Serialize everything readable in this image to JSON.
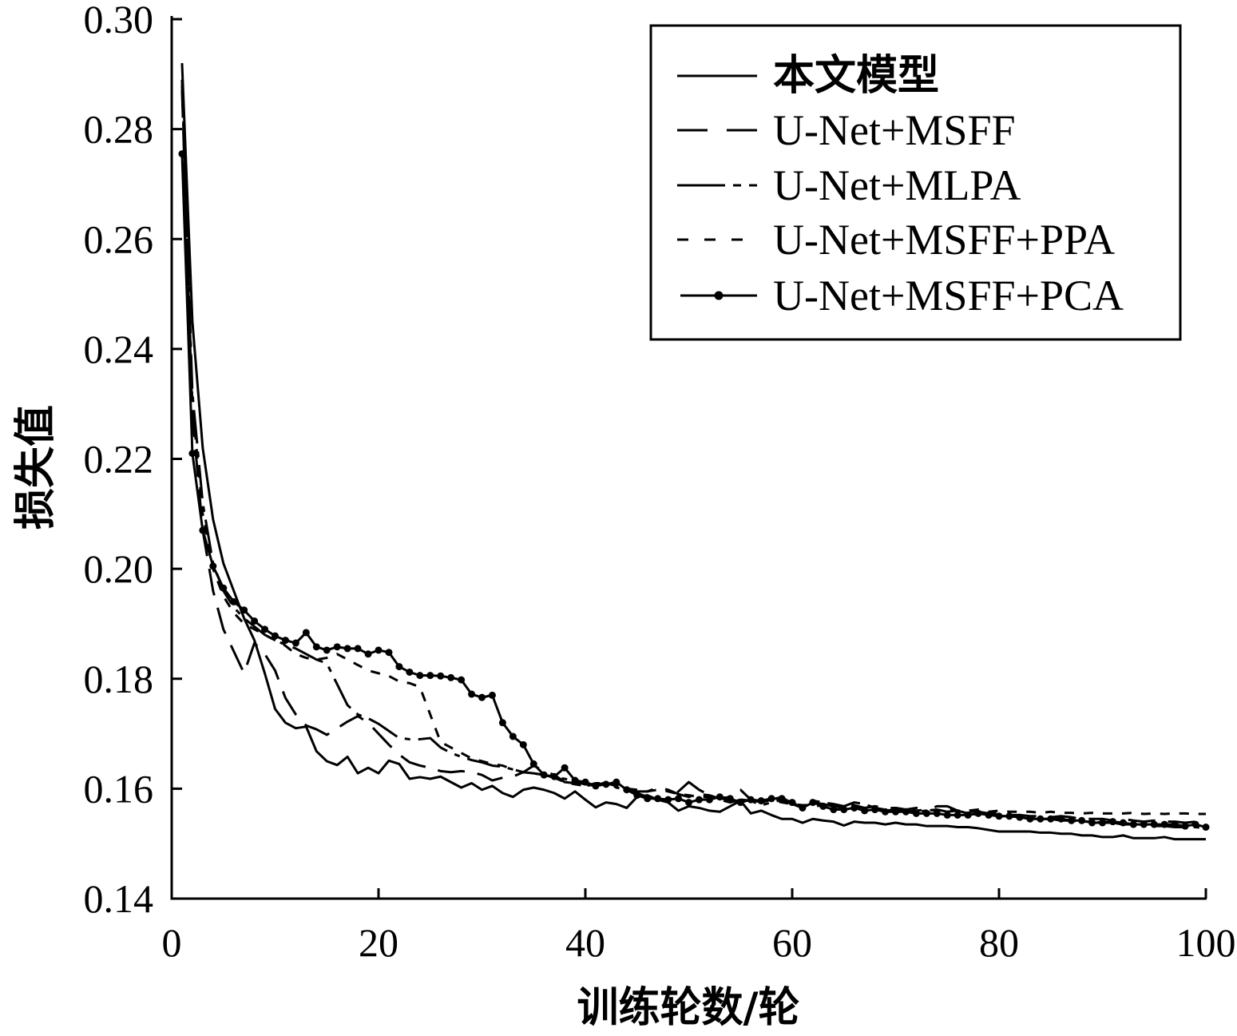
{
  "chart_data": {
    "type": "line",
    "xlabel": "训练轮数/轮",
    "ylabel": "损失值",
    "xlim": [
      0,
      100
    ],
    "ylim": [
      0.14,
      0.3
    ],
    "xticks": [
      "0",
      "20",
      "40",
      "60",
      "80",
      "100"
    ],
    "yticks": [
      "0.14",
      "0.16",
      "0.18",
      "0.20",
      "0.22",
      "0.24",
      "0.26",
      "0.28",
      "0.30"
    ],
    "grid": false,
    "legend_position": "top-right",
    "x": [
      1,
      2,
      3,
      4,
      5,
      6,
      7,
      8,
      9,
      10,
      11,
      12,
      13,
      14,
      15,
      16,
      17,
      18,
      19,
      20,
      21,
      22,
      23,
      24,
      25,
      26,
      27,
      28,
      29,
      30,
      31,
      32,
      33,
      34,
      35,
      36,
      37,
      38,
      39,
      40,
      41,
      42,
      43,
      44,
      45,
      46,
      47,
      48,
      49,
      50,
      51,
      52,
      53,
      54,
      55,
      56,
      57,
      58,
      59,
      60,
      61,
      62,
      63,
      64,
      65,
      66,
      67,
      68,
      69,
      70,
      71,
      72,
      73,
      74,
      75,
      76,
      77,
      78,
      79,
      80,
      81,
      82,
      83,
      84,
      85,
      86,
      87,
      88,
      89,
      90,
      91,
      92,
      93,
      94,
      95,
      96,
      97,
      98,
      99,
      100
    ],
    "series": [
      {
        "name": "本文模型",
        "color": "#000000",
        "values": [
          0.292,
          0.245,
          0.222,
          0.209,
          0.201,
          0.196,
          0.191,
          0.187,
          0.181,
          0.1745,
          0.172,
          0.171,
          0.1713,
          0.1668,
          0.165,
          0.1643,
          0.1658,
          0.1628,
          0.1638,
          0.1628,
          0.1651,
          0.1645,
          0.1618,
          0.1621,
          0.1618,
          0.1622,
          0.1612,
          0.1602,
          0.161,
          0.1598,
          0.1605,
          0.1592,
          0.1585,
          0.1598,
          0.1602,
          0.1598,
          0.1592,
          0.1582,
          0.1595,
          0.158,
          0.1566,
          0.1575,
          0.1572,
          0.1565,
          0.1585,
          0.1588,
          0.158,
          0.1575,
          0.156,
          0.1568,
          0.1565,
          0.156,
          0.1558,
          0.1568,
          0.1578,
          0.1555,
          0.156,
          0.1552,
          0.1545,
          0.1545,
          0.1538,
          0.1545,
          0.1542,
          0.154,
          0.1533,
          0.154,
          0.1538,
          0.1538,
          0.1535,
          0.1538,
          0.1535,
          0.1535,
          0.1532,
          0.1532,
          0.1532,
          0.153,
          0.153,
          0.1528,
          0.1525,
          0.1522,
          0.1522,
          0.1522,
          0.1522,
          0.152,
          0.152,
          0.1518,
          0.1518,
          0.1515,
          0.1515,
          0.1512,
          0.1512,
          0.1515,
          0.151,
          0.151,
          0.151,
          0.1512,
          0.1508,
          0.1508,
          0.1508,
          0.1508
        ]
      },
      {
        "name": "U-Net+MSFF",
        "color": "#000000",
        "values": [
          0.287,
          0.228,
          0.207,
          0.196,
          0.189,
          0.185,
          0.181,
          0.1865,
          0.1845,
          0.1815,
          0.1765,
          0.1735,
          0.1715,
          0.1708,
          0.1698,
          0.171,
          0.1722,
          0.1732,
          0.172,
          0.17,
          0.168,
          0.1662,
          0.1648,
          0.1642,
          0.1638,
          0.1632,
          0.163,
          0.1632,
          0.163,
          0.1625,
          0.1615,
          0.162,
          0.1622,
          0.163,
          0.1642,
          0.1632,
          0.1625,
          0.1612,
          0.161,
          0.1605,
          0.1608,
          0.161,
          0.1605,
          0.1598,
          0.1595,
          0.1595,
          0.1602,
          0.1598,
          0.159,
          0.1585,
          0.159,
          0.1588,
          0.1582,
          0.1585,
          0.1598,
          0.158,
          0.1575,
          0.158,
          0.1585,
          0.1572,
          0.1568,
          0.1575,
          0.1572,
          0.1568,
          0.1572,
          0.157,
          0.1565,
          0.1568,
          0.1565,
          0.1565,
          0.1562,
          0.1565,
          0.156,
          0.1562,
          0.1558,
          0.156,
          0.1558,
          0.1558,
          0.1555,
          0.1555,
          0.1552,
          0.1552,
          0.155,
          0.155,
          0.1548,
          0.155,
          0.1548,
          0.1545,
          0.1545,
          0.1545,
          0.1542,
          0.1545,
          0.1542,
          0.154,
          0.1542,
          0.154,
          0.154,
          0.1538,
          0.154,
          0.1538
        ]
      },
      {
        "name": "U-Net+MLPA",
        "color": "#000000",
        "values": [
          0.289,
          0.232,
          0.212,
          0.201,
          0.196,
          0.193,
          0.191,
          0.1895,
          0.188,
          0.187,
          0.1862,
          0.1855,
          0.1845,
          0.1835,
          0.1828,
          0.179,
          0.1752,
          0.1735,
          0.1728,
          0.1718,
          0.1705,
          0.1692,
          0.169,
          0.169,
          0.1692,
          0.1675,
          0.1665,
          0.1658,
          0.1652,
          0.1648,
          0.1642,
          0.164,
          0.1635,
          0.163,
          0.1628,
          0.1625,
          0.162,
          0.1618,
          0.1612,
          0.1608,
          0.1605,
          0.1612,
          0.1602,
          0.1598,
          0.1592,
          0.1585,
          0.158,
          0.1578,
          0.1595,
          0.1612,
          0.1598,
          0.1588,
          0.158,
          0.1575,
          0.158,
          0.1578,
          0.157,
          0.1575,
          0.158,
          0.1572,
          0.1565,
          0.1578,
          0.1575,
          0.1572,
          0.1568,
          0.1575,
          0.1572,
          0.1565,
          0.156,
          0.1562,
          0.156,
          0.1558,
          0.156,
          0.1568,
          0.1568,
          0.156,
          0.1555,
          0.1552,
          0.1555,
          0.155,
          0.155,
          0.1548,
          0.1548,
          0.1545,
          0.1545,
          0.1542,
          0.1542,
          0.154,
          0.154,
          0.1538,
          0.1538,
          0.1535,
          0.1535,
          0.1535,
          0.1532,
          0.1532,
          0.153,
          0.153,
          0.153,
          0.1528
        ]
      },
      {
        "name": "U-Net+MSFF+PPA",
        "color": "#000000",
        "values": [
          0.288,
          0.23,
          0.21,
          0.2,
          0.195,
          0.192,
          0.19,
          0.189,
          0.188,
          0.187,
          0.186,
          0.1845,
          0.1838,
          0.1835,
          0.1838,
          0.1845,
          0.1835,
          0.1825,
          0.1815,
          0.181,
          0.1805,
          0.1795,
          0.1792,
          0.1785,
          0.1735,
          0.1685,
          0.1675,
          0.1665,
          0.1655,
          0.165,
          0.1645,
          0.1642,
          0.1635,
          0.163,
          0.1628,
          0.1625,
          0.162,
          0.1612,
          0.1608,
          0.1605,
          0.161,
          0.161,
          0.1605,
          0.16,
          0.1598,
          0.1595,
          0.1598,
          0.1595,
          0.159,
          0.1588,
          0.1585,
          0.1585,
          0.1582,
          0.158,
          0.158,
          0.1578,
          0.1575,
          0.158,
          0.1575,
          0.1572,
          0.157,
          0.157,
          0.1568,
          0.1568,
          0.1565,
          0.1568,
          0.1565,
          0.1565,
          0.1562,
          0.1565,
          0.1562,
          0.156,
          0.1562,
          0.156,
          0.1562,
          0.156,
          0.156,
          0.1562,
          0.1558,
          0.156,
          0.1558,
          0.1558,
          0.1558,
          0.1556,
          0.1558,
          0.1556,
          0.1556,
          0.1555,
          0.1556,
          0.1555,
          0.1555,
          0.1555,
          0.1556,
          0.1554,
          0.1555,
          0.1554,
          0.1555,
          0.1555,
          0.1554,
          0.1554
        ]
      },
      {
        "name": "U-Net+MSFF+PCA",
        "color": "#000000",
        "values": [
          0.2755,
          0.221,
          0.207,
          0.2005,
          0.1965,
          0.194,
          0.1925,
          0.1905,
          0.189,
          0.1878,
          0.187,
          0.1865,
          0.1884,
          0.1858,
          0.1852,
          0.1858,
          0.1855,
          0.1855,
          0.1845,
          0.1852,
          0.1848,
          0.1822,
          0.1812,
          0.1806,
          0.1806,
          0.1805,
          0.1802,
          0.1798,
          0.1772,
          0.1766,
          0.177,
          0.172,
          0.1695,
          0.168,
          0.1645,
          0.1625,
          0.1622,
          0.1638,
          0.1615,
          0.1612,
          0.1605,
          0.1608,
          0.1612,
          0.1598,
          0.1588,
          0.1582,
          0.1582,
          0.158,
          0.1582,
          0.1575,
          0.158,
          0.158,
          0.1585,
          0.1582,
          0.1575,
          0.158,
          0.1578,
          0.1582,
          0.1582,
          0.1575,
          0.1565,
          0.1575,
          0.1568,
          0.1562,
          0.1562,
          0.1565,
          0.156,
          0.1562,
          0.1558,
          0.1558,
          0.1558,
          0.1555,
          0.1555,
          0.1555,
          0.1552,
          0.1552,
          0.1552,
          0.1555,
          0.1552,
          0.155,
          0.155,
          0.1548,
          0.1545,
          0.1545,
          0.1545,
          0.1545,
          0.1542,
          0.1542,
          0.1538,
          0.1538,
          0.154,
          0.1538,
          0.1535,
          0.1535,
          0.1535,
          0.1535,
          0.1535,
          0.1532,
          0.1535,
          0.153
        ]
      }
    ]
  }
}
